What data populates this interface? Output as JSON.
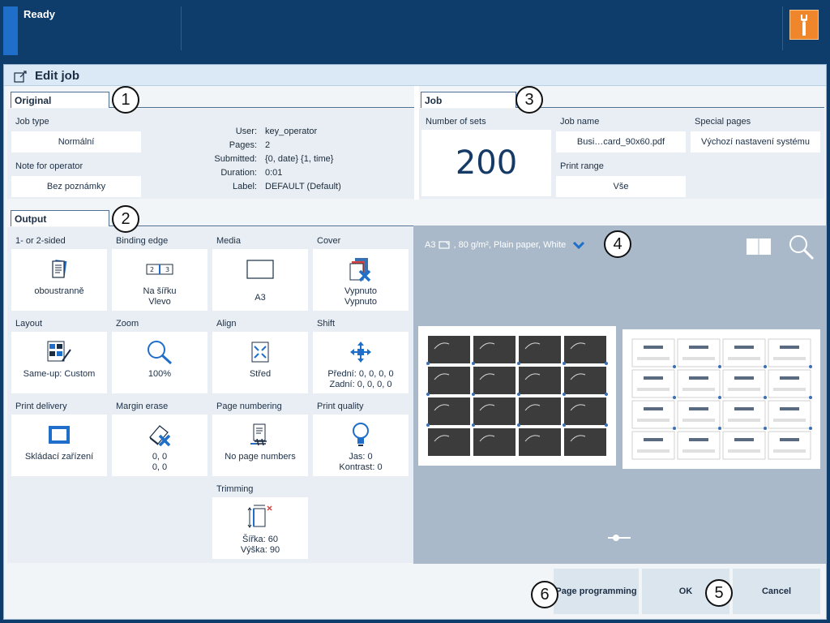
{
  "status": {
    "text": "Ready"
  },
  "window": {
    "title": "Edit job"
  },
  "original": {
    "tab": "Original",
    "job_type": {
      "label": "Job type",
      "value": "Normální"
    },
    "note": {
      "label": "Note for operator",
      "value": "Bez poznámky"
    },
    "info": [
      {
        "key": "User:",
        "value": "key_operator"
      },
      {
        "key": "Pages:",
        "value": "2"
      },
      {
        "key": "Submitted:",
        "value": "{0, date} {1, time}"
      },
      {
        "key": "Duration:",
        "value": "0:01"
      },
      {
        "key": "Label:",
        "value": "DEFAULT (Default)"
      }
    ]
  },
  "job": {
    "tab": "Job",
    "sets": {
      "label": "Number of sets",
      "value": "200"
    },
    "name": {
      "label": "Job name",
      "value": "Busi…card_90x60.pdf"
    },
    "range": {
      "label": "Print range",
      "value": "Vše"
    },
    "special": {
      "label": "Special pages",
      "value": "Výchozí nastavení systému"
    }
  },
  "output": {
    "tab": "Output",
    "tiles": {
      "sided": {
        "label": "1- or 2-sided",
        "line1": "oboustranně",
        "line2": ""
      },
      "binding": {
        "label": "Binding edge",
        "line1": "Na šířku",
        "line2": "Vlevo"
      },
      "media": {
        "label": "Media",
        "line1": "A3",
        "line2": ""
      },
      "cover": {
        "label": "Cover",
        "line1": "Vypnuto",
        "line2": "Vypnuto"
      },
      "layout": {
        "label": "Layout",
        "line1": "Same-up: Custom",
        "line2": ""
      },
      "zoom": {
        "label": "Zoom",
        "line1": "100%",
        "line2": ""
      },
      "align": {
        "label": "Align",
        "line1": "Střed",
        "line2": ""
      },
      "shift": {
        "label": "Shift",
        "line1": "Přední: 0, 0, 0, 0",
        "line2": "Zadní: 0, 0, 0, 0"
      },
      "delivery": {
        "label": "Print delivery",
        "line1": "Skládací zařízení",
        "line2": ""
      },
      "margin": {
        "label": "Margin erase",
        "line1": "0, 0",
        "line2": "0, 0"
      },
      "numbering": {
        "label": "Page numbering",
        "line1": "No page numbers",
        "line2": ""
      },
      "quality": {
        "label": "Print quality",
        "line1": "Jas: 0",
        "line2": "Kontrast: 0"
      },
      "trimming": {
        "label": "Trimming",
        "line1": "Šířka: 60",
        "line2": "Výška: 90"
      }
    }
  },
  "preview": {
    "media_prefix": "A3",
    "media_suffix": ", 80 g/m², Plain paper, White"
  },
  "buttons": {
    "page_programming": "Page programming",
    "ok": "OK",
    "cancel": "Cancel"
  },
  "callouts": [
    "1",
    "2",
    "3",
    "4",
    "5",
    "6"
  ],
  "colors": {
    "accent": "#f0862b",
    "navy": "#0f3d6b",
    "icon_blue": "#1f6ec9"
  }
}
